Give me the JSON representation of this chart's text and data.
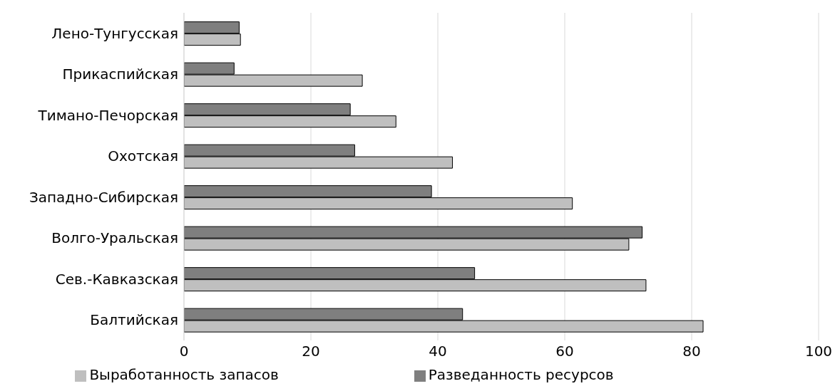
{
  "chart_data": {
    "type": "bar",
    "orientation": "horizontal",
    "categories": [
      "Лено-Тунгусская",
      "Прикаспийская",
      "Тимано-Печорская",
      "Охотская",
      "Западно-Сибирская",
      "Волго-Уральская",
      "Сев.-Кавказская",
      "Балтийская"
    ],
    "series": [
      {
        "name": "Разведанность ресурсов",
        "color": "#7f7f7f",
        "values": [
          8.7,
          7.9,
          26.2,
          26.9,
          39.0,
          72.2,
          45.8,
          43.9
        ]
      },
      {
        "name": "Выработанность запасов",
        "color": "#bfbfbf",
        "values": [
          8.9,
          28.1,
          33.4,
          42.3,
          61.2,
          70.1,
          72.8,
          81.8
        ]
      }
    ],
    "xlim": [
      0,
      100
    ],
    "xticks": [
      0,
      20,
      40,
      60,
      80,
      100
    ],
    "grid": "x",
    "legend": "bottom"
  }
}
